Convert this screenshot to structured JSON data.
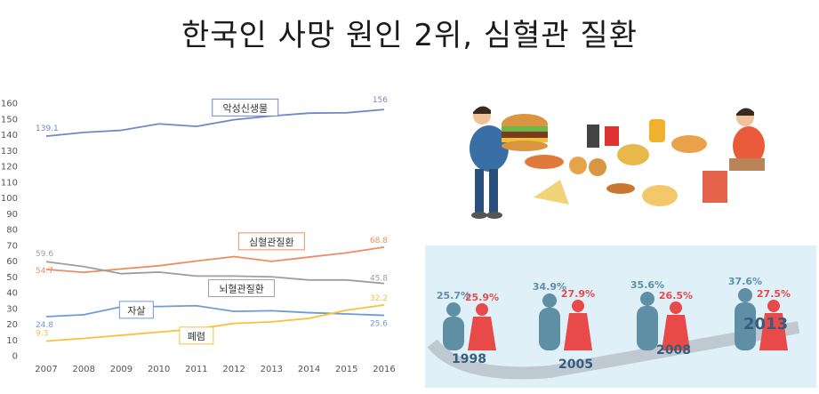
{
  "title": "한국인 사망 원인 2위, 심혈관 질환",
  "chart_data": {
    "type": "line",
    "x": [
      2007,
      2008,
      2009,
      2010,
      2011,
      2012,
      2013,
      2014,
      2015,
      2016
    ],
    "ylim": [
      0,
      160
    ],
    "yticks": [
      0,
      10,
      20,
      30,
      40,
      50,
      60,
      70,
      80,
      90,
      100,
      110,
      120,
      130,
      140,
      150,
      160
    ],
    "grid": false,
    "series": [
      {
        "name": "악성신생물",
        "color": "#6f88c6",
        "values": [
          139.1,
          141.5,
          142.8,
          146.9,
          145.3,
          149.5,
          151.9,
          153.7,
          153.9,
          156
        ],
        "first_label": "139.1",
        "last_label": "156",
        "label_box": true
      },
      {
        "name": "심혈관질환",
        "color": "#ec8d61",
        "values": [
          54.7,
          52.8,
          55.0,
          57.0,
          60.0,
          62.8,
          59.8,
          62.5,
          65.2,
          68.8
        ],
        "first_label": "54.7",
        "last_label": "68.8",
        "label_box": true
      },
      {
        "name": "뇌혈관질환",
        "color": "#9e9e9e",
        "values": [
          59.6,
          56.5,
          52.0,
          53.0,
          50.5,
          50.5,
          50.0,
          48.0,
          48.0,
          45.8
        ],
        "first_label": "59.6",
        "last_label": "45.8",
        "label_box": true
      },
      {
        "name": "자살",
        "color": "#6e9ad6",
        "values": [
          24.8,
          26.0,
          31.0,
          31.2,
          31.7,
          28.1,
          28.5,
          27.3,
          26.5,
          25.6
        ],
        "first_label": "24.8",
        "last_label": "25.6",
        "label_box": true
      },
      {
        "name": "폐렴",
        "color": "#f5c23e",
        "values": [
          9.3,
          11.0,
          13.0,
          15.0,
          17.0,
          20.5,
          21.5,
          23.7,
          28.9,
          32.2
        ],
        "first_label": "9.3",
        "last_label": "32.2",
        "label_box": true
      }
    ]
  },
  "obesity_panel": {
    "items": [
      {
        "male_pct": "25.7",
        "female_pct": "25.9",
        "year": "1998"
      },
      {
        "male_pct": "34.9",
        "female_pct": "27.9",
        "year": "2005"
      },
      {
        "male_pct": "35.6",
        "female_pct": "26.5",
        "year": "2008"
      },
      {
        "male_pct": "37.6",
        "female_pct": "27.5",
        "year": "2013"
      }
    ],
    "pct_suffix": "%",
    "male_color": "#5f8fa5",
    "female_color": "#e84a4a"
  }
}
